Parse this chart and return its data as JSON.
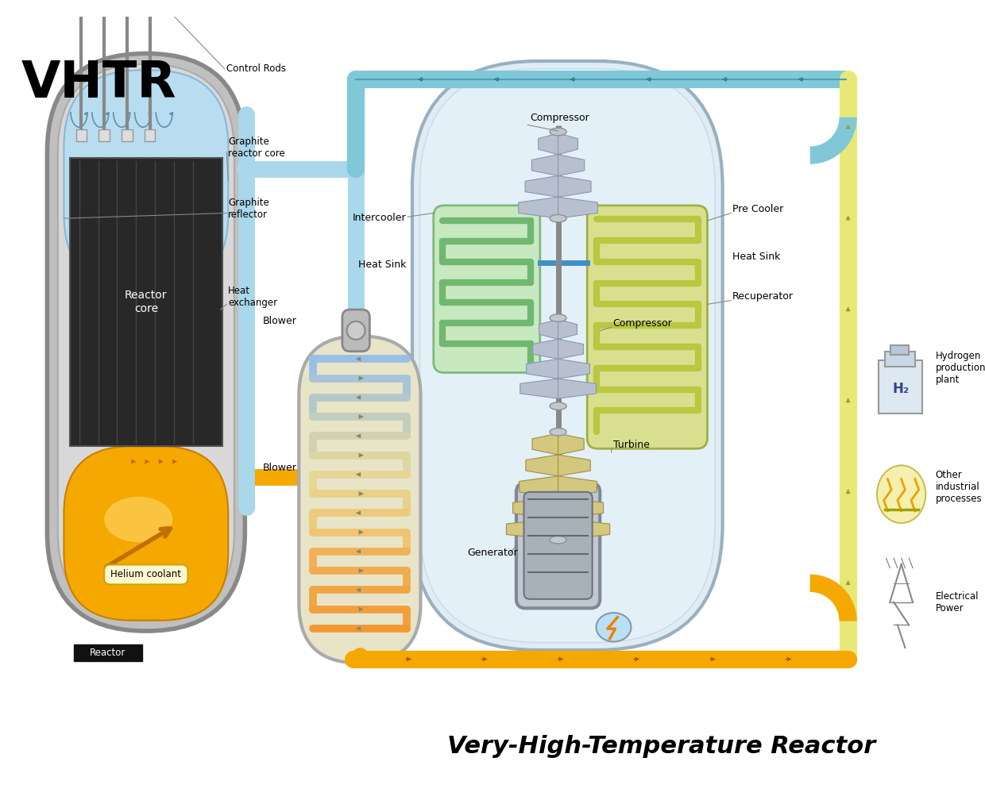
{
  "title_main": "VHTR",
  "title_sub": "Very-High-Temperature Reactor",
  "bg_color": "#ffffff",
  "labels": {
    "control_rods": "Control Rods",
    "graphite_reactor_core": "Graphite\nreactor core",
    "graphite_reflector": "Graphite\nreflector",
    "heat_exchanger": "Heat\nexchanger",
    "blower_top": "Blower",
    "blower_bottom": "Blower",
    "reactor_core": "Reactor\ncore",
    "helium_coolant": "Helium coolant",
    "reactor_label": "Reactor",
    "compressor_top": "Compressor",
    "intercooler": "Intercooler",
    "heat_sink_left": "Heat Sink",
    "heat_sink_right": "Heat Sink",
    "pre_cooler": "Pre Cooler",
    "recuperator": "Recuperator",
    "compressor_bottom": "Compressor",
    "turbine": "Turbine",
    "generator": "Generator",
    "h2_plant": "Hydrogen\nproduction\nplant",
    "other_industrial": "Other\nindustrial\nprocesses",
    "electrical_power": "Electrical\nPower"
  },
  "colors": {
    "reactor_outer": "#999999",
    "reactor_inner_top": "#b8ddf0",
    "reactor_inner_dark": "#2a2a2a",
    "reactor_bottom_fill": "#f5a800",
    "control_rod": "#666666",
    "orange_pipe": "#f5a800",
    "orange_pipe_stroke": "#e07800",
    "blue_pipe": "#6cb4d8",
    "blue_pipe_light": "#a8d8ea",
    "cyan_pipe": "#80c8d8",
    "yellow_pipe": "#d8d840",
    "yellow_pipe_light": "#e8e878",
    "turbine_blade": "#b8c0d0",
    "turbine_blade_yellow": "#d4c880",
    "generator_outer": "#b0b8c0",
    "heat_ex_bg": "#e8e4c8",
    "intercooler_bg": "#c8e8c0",
    "intercooler_coil": "#70b870",
    "recuperator_bg": "#d8e090",
    "recuperator_coil": "#b8c840",
    "vessel_bg": "#e0ecf4",
    "helium_label_border": "#c8a800",
    "helium_label_bg": "#fff8d0",
    "shaft_color": "#888888"
  }
}
